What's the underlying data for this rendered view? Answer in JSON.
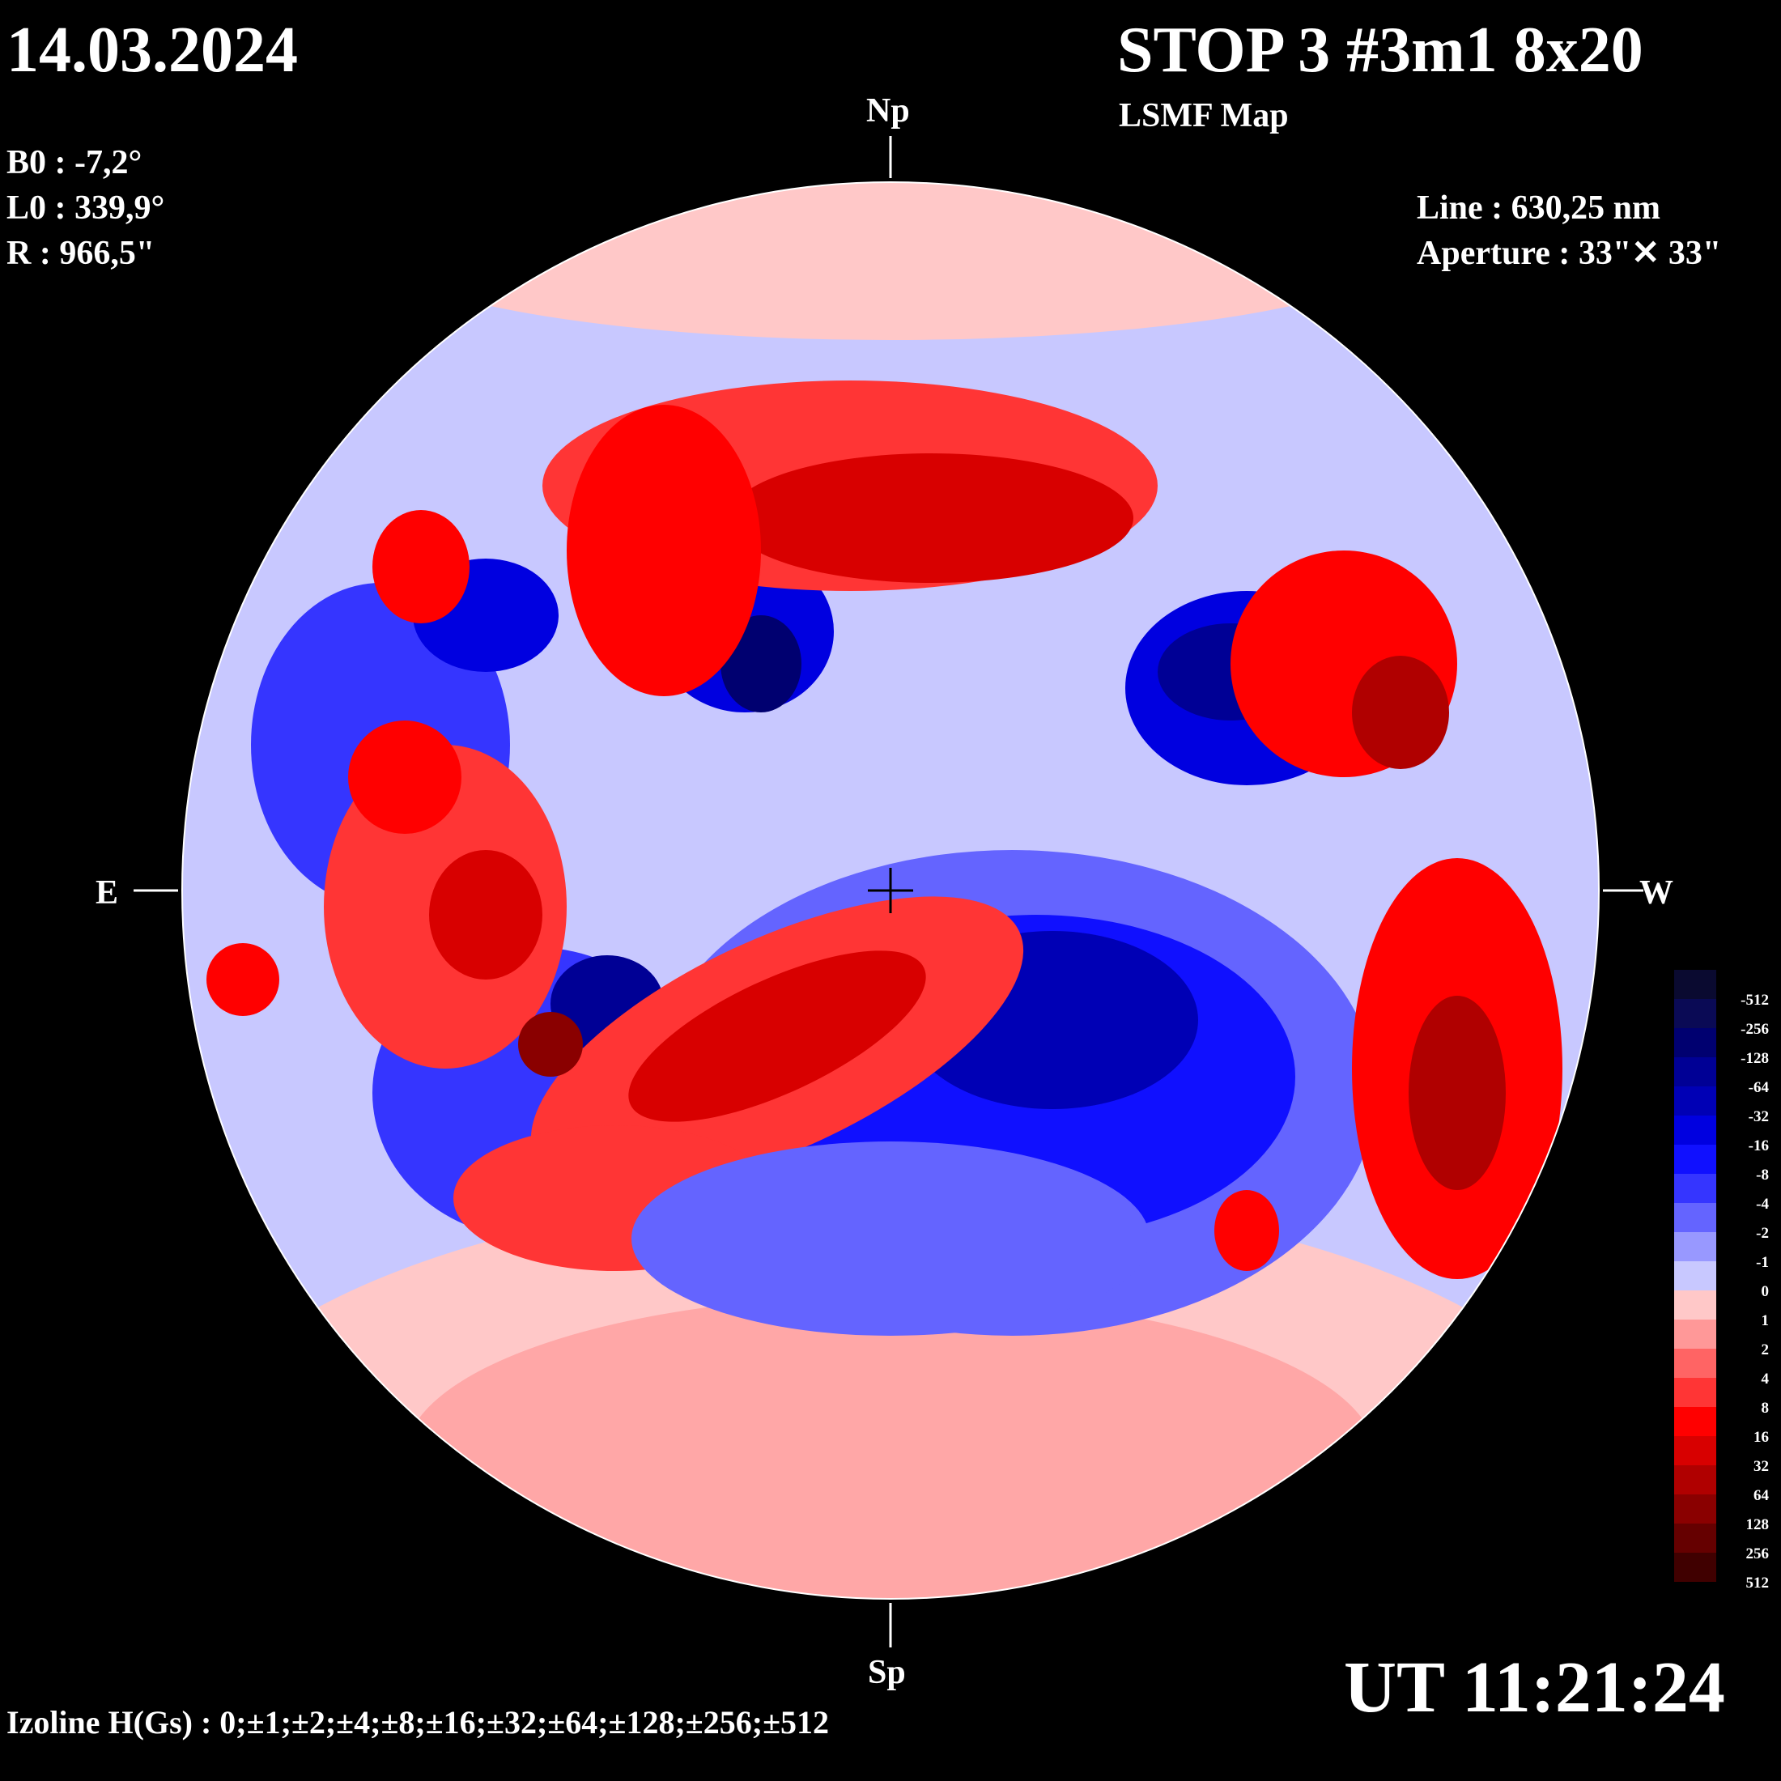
{
  "header": {
    "date": "14.03.2024",
    "title": "STOP 3 #3m1 8x20",
    "subtitle": "LSMF  Map"
  },
  "ephemeris": {
    "b0": "B0 : -7,2°",
    "l0": "L0 : 339,9°",
    "r": "R  : 966,5\""
  },
  "instrument": {
    "line": "Line :  630,25 nm",
    "aperture": "Aperture : 33\"✕ 33\""
  },
  "compass": {
    "north": "Np",
    "south": "Sp",
    "east": "E",
    "west": "W"
  },
  "time": "UT 11:21:24",
  "izoline": "Izoline H(Gs) : 0;±1;±2;±4;±8;±16;±32;±64;±128;±256;±512",
  "colorbar": {
    "labels": [
      "-512",
      "-256",
      "-128",
      "-64",
      "-32",
      "-16",
      "-8",
      "-4",
      "-2",
      "-1",
      "0",
      "1",
      "2",
      "4",
      "8",
      "16",
      "32",
      "64",
      "128",
      "256",
      "512"
    ],
    "colors": [
      "#0a0a30",
      "#0a0a55",
      "#000070",
      "#000095",
      "#0000b5",
      "#0000e0",
      "#1010ff",
      "#3535ff",
      "#6464ff",
      "#9898ff",
      "#c8c8ff",
      "#ffc8c8",
      "#ff9898",
      "#ff6464",
      "#ff3535",
      "#ff0000",
      "#d80000",
      "#b00000",
      "#8a0000",
      "#650000",
      "#400000"
    ]
  },
  "colors": {
    "background": "#000000",
    "text": "#ffffff",
    "contour": "#ffffff"
  }
}
